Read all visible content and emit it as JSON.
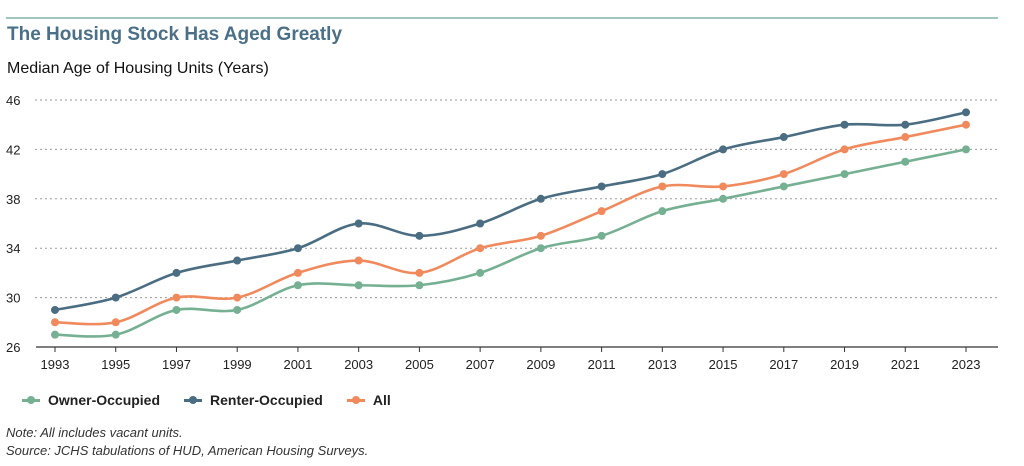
{
  "header": {
    "title": "The Housing Stock Has Aged Greatly",
    "subtitle": "Median Age of Housing Units (Years)"
  },
  "notes": {
    "note": "Note: All includes vacant units.",
    "source": "Source: JCHS tabulations of HUD, American Housing Surveys."
  },
  "chart_data": {
    "type": "line",
    "title": "The Housing Stock Has Aged Greatly",
    "subtitle": "Median Age of Housing Units (Years)",
    "x": [
      "1993",
      "1995",
      "1997",
      "1999",
      "2001",
      "2003",
      "2005",
      "2007",
      "2009",
      "2011",
      "2013",
      "2015",
      "2017",
      "2019",
      "2021",
      "2023"
    ],
    "yticks": [
      26,
      30,
      34,
      38,
      42,
      46
    ],
    "ylim": [
      26,
      46
    ],
    "grid": true,
    "legend": "bottom-left",
    "series": [
      {
        "name": "Owner-Occupied",
        "color": "#76b093",
        "values": [
          27,
          27,
          29,
          29,
          31,
          31,
          31,
          32,
          34,
          35,
          37,
          38,
          39,
          40,
          41,
          42
        ]
      },
      {
        "name": "Renter-Occupied",
        "color": "#4a6d82",
        "values": [
          29,
          30,
          32,
          33,
          34,
          36,
          35,
          36,
          38,
          39,
          40,
          42,
          43,
          44,
          44,
          45
        ]
      },
      {
        "name": "All",
        "color": "#f08a5d",
        "values": [
          28,
          28,
          30,
          30,
          32,
          33,
          32,
          34,
          35,
          37,
          39,
          39,
          40,
          42,
          43,
          44
        ]
      }
    ]
  }
}
